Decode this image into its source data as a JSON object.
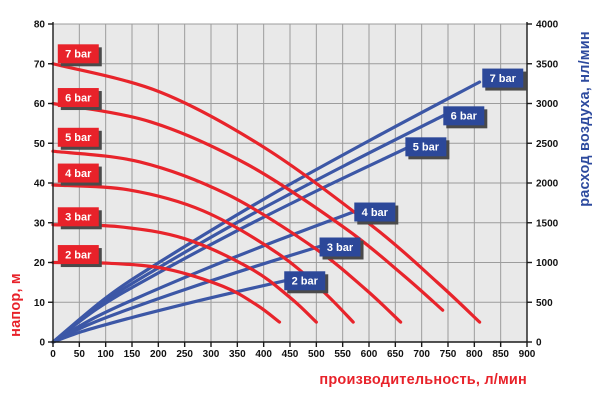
{
  "colors": {
    "head_red": "#e8242b",
    "air_blue": "#3c57a6",
    "label_box_red": "#e8222a",
    "label_box_blue": "#2c4899",
    "label_text": "#ffffff",
    "label_shadow": "#4a4a4a",
    "plot_bg": "#e9e9e9",
    "grid": "#9c9c9c",
    "axis": "#1a1a1a",
    "tick_text": "#111111"
  },
  "chart_data": {
    "type": "line",
    "title": "",
    "grid": true,
    "legend_position": "inline-curve-labels",
    "x_axis": {
      "label": "производительность, л/мин",
      "min": 0,
      "max": 900,
      "tick_step": 50,
      "ticks": [
        0,
        50,
        100,
        150,
        200,
        250,
        300,
        350,
        400,
        450,
        500,
        550,
        600,
        650,
        700,
        750,
        800,
        850,
        900
      ]
    },
    "y_left": {
      "label": "напор, м",
      "min": 0,
      "max": 80,
      "tick_step": 10,
      "ticks": [
        0,
        10,
        20,
        30,
        40,
        50,
        60,
        70,
        80
      ],
      "color": "#e8222a",
      "applies_to": "head curves (red)"
    },
    "y_right": {
      "label": "расход воздуха, нл/мин",
      "min": 0,
      "max": 4000,
      "tick_step": 500,
      "ticks": [
        0,
        500,
        1000,
        1500,
        2000,
        2500,
        3000,
        3500,
        4000
      ],
      "color": "#2d4a9e",
      "applies_to": "air consumption curves (blue)"
    },
    "head_curves": [
      {
        "name": "2 bar",
        "points": [
          [
            0,
            20
          ],
          [
            108,
            19.8
          ],
          [
            215,
            18.4
          ],
          [
            323,
            14
          ],
          [
            387,
            9.3
          ],
          [
            430,
            5
          ]
        ],
        "label_at": [
          48,
          22
        ]
      },
      {
        "name": "3 bar",
        "points": [
          [
            0,
            29.5
          ],
          [
            125,
            29
          ],
          [
            250,
            26
          ],
          [
            375,
            18.5
          ],
          [
            450,
            11.2
          ],
          [
            500,
            5
          ]
        ],
        "label_at": [
          48,
          31.5
        ]
      },
      {
        "name": "4 bar",
        "points": [
          [
            0,
            39.5
          ],
          [
            143,
            38.3
          ],
          [
            285,
            33
          ],
          [
            428,
            22.2
          ],
          [
            513,
            12.7
          ],
          [
            570,
            5
          ]
        ],
        "label_at": [
          48,
          42.5
        ]
      },
      {
        "name": "5 bar",
        "points": [
          [
            0,
            48
          ],
          [
            165,
            45.3
          ],
          [
            330,
            37.2
          ],
          [
            495,
            23.8
          ],
          [
            594,
            13.2
          ],
          [
            660,
            5
          ]
        ],
        "label_at": [
          48,
          51.5
        ]
      },
      {
        "name": "6 bar",
        "points": [
          [
            0,
            60
          ],
          [
            185,
            55.4
          ],
          [
            370,
            44.6
          ],
          [
            555,
            28.6
          ],
          [
            666,
            16.7
          ],
          [
            740,
            8
          ]
        ],
        "label_at": [
          48,
          61.5
        ]
      },
      {
        "name": "7 bar",
        "points": [
          [
            0,
            70
          ],
          [
            203,
            62.9
          ],
          [
            405,
            48.6
          ],
          [
            608,
            29
          ],
          [
            729,
            15.1
          ],
          [
            810,
            5
          ]
        ],
        "label_at": [
          48,
          72.5
        ]
      }
    ],
    "air_curves": [
      {
        "name": "2 bar",
        "points": [
          [
            0,
            0
          ],
          [
            55,
            132
          ],
          [
            110,
            237
          ],
          [
            220,
            427
          ],
          [
            330,
            603
          ],
          [
            440,
            770
          ]
        ],
        "label_at": [
          478,
          770
        ]
      },
      {
        "name": "3 bar",
        "points": [
          [
            0,
            0
          ],
          [
            63,
            205
          ],
          [
            126,
            370
          ],
          [
            253,
            666
          ],
          [
            379,
            940
          ],
          [
            505,
            1200
          ]
        ],
        "label_at": [
          545,
          1195
        ]
      },
      {
        "name": "4 bar",
        "points": [
          [
            0,
            0
          ],
          [
            72,
            280
          ],
          [
            143,
            505
          ],
          [
            286,
            910
          ],
          [
            429,
            1284
          ],
          [
            572,
            1640
          ]
        ],
        "label_at": [
          611,
          1635
        ]
      },
      {
        "name": "5 bar",
        "points": [
          [
            0,
            0
          ],
          [
            84,
            419
          ],
          [
            169,
            755
          ],
          [
            338,
            1360
          ],
          [
            506,
            1918
          ],
          [
            675,
            2450
          ]
        ],
        "label_at": [
          708,
          2455
        ]
      },
      {
        "name": "6 bar",
        "points": [
          [
            0,
            0
          ],
          [
            93,
            487
          ],
          [
            186,
            878
          ],
          [
            371,
            1582
          ],
          [
            557,
            2232
          ],
          [
            742,
            2850
          ]
        ],
        "label_at": [
          780,
          2845
        ]
      },
      {
        "name": "7 bar",
        "points": [
          [
            0,
            0
          ],
          [
            101,
            559
          ],
          [
            203,
            1007
          ],
          [
            405,
            1815
          ],
          [
            608,
            2560
          ],
          [
            810,
            3270
          ]
        ],
        "label_at": [
          854,
          3320
        ]
      }
    ]
  }
}
